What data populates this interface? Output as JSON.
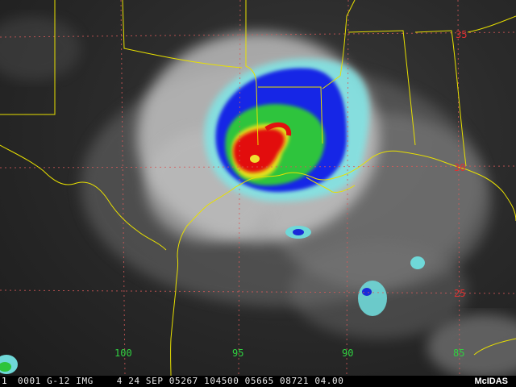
{
  "map": {
    "latitude_labels": [
      "35",
      "30",
      "25"
    ],
    "longitude_labels": [
      "100",
      "95",
      "90",
      "85"
    ],
    "colors": {
      "outline": "#e8e000",
      "graticule": "#d85a5a",
      "eye_red": "#e21010",
      "ring_green": "#2ec43c",
      "ring_blue": "#1628e6",
      "ring_cyan": "#7fe6e6"
    }
  },
  "status_bar": {
    "frame_number": "1",
    "header_text": "0001 G-12 IMG    4 24 SEP 05267 104500 05665 08721 04.00",
    "logo": "McIDAS"
  }
}
